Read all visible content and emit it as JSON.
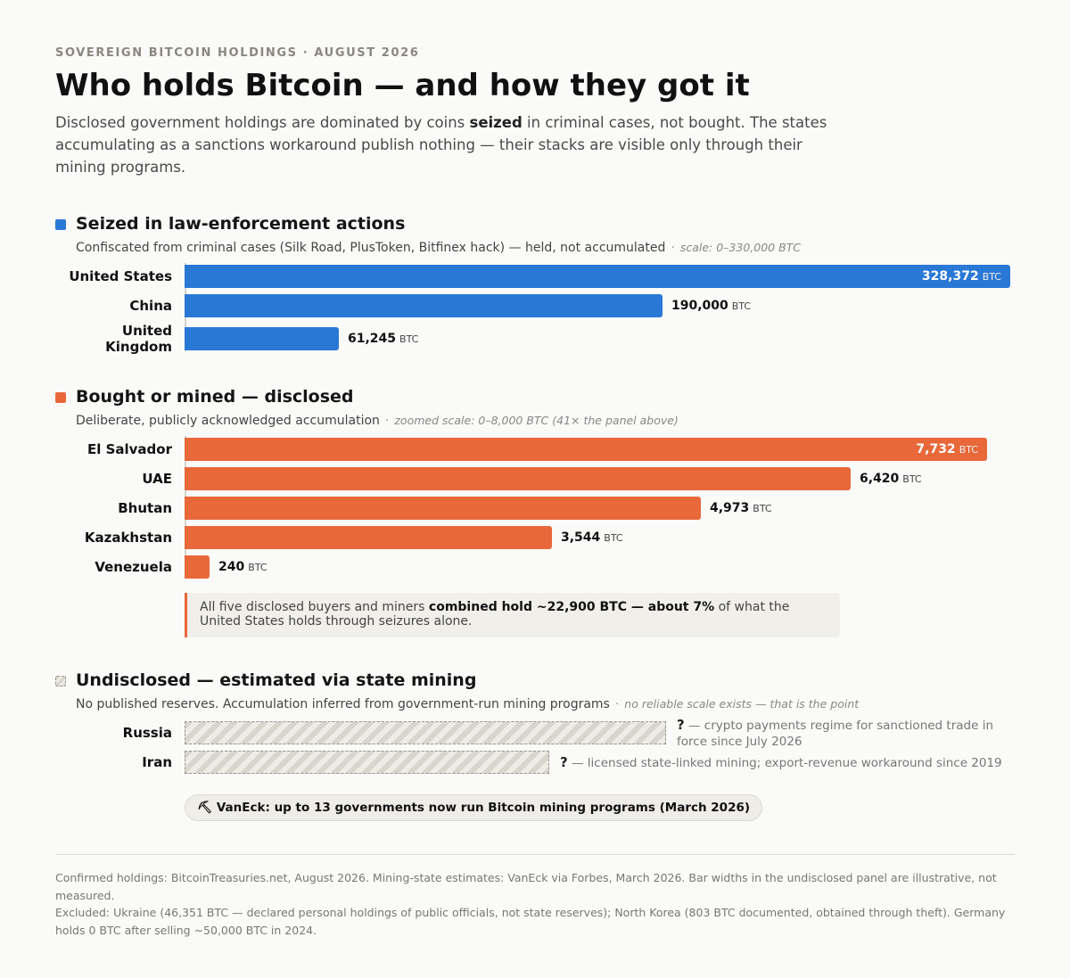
{
  "header": {
    "eyebrow": "SOVEREIGN BITCOIN HOLDINGS · AUGUST 2026",
    "title": "Who holds Bitcoin — and how they got it",
    "subtitle_pre": "Disclosed government holdings are dominated by coins ",
    "subtitle_bold": "seized",
    "subtitle_post": " in criminal cases, not bought. The states accumulating as a sanctions workaround publish nothing — their stacks are visible only through their mining programs."
  },
  "colors": {
    "seized": "#2a78d6",
    "bought": "#e8683a",
    "undisclosed": "#d8d5cd"
  },
  "chart_data": [
    {
      "type": "bar",
      "orientation": "horizontal",
      "title": "Seized in law-enforcement actions",
      "subtitle": "Confiscated from criminal cases (Silk Road, PlusToken, Bitfinex hack) — held, not accumulated",
      "scale_note": "scale: 0–330,000 BTC",
      "xlim": [
        0,
        330000
      ],
      "unit": "BTC",
      "categories": [
        "United States",
        "China",
        "United Kingdom"
      ],
      "values": [
        328372,
        190000,
        61245
      ],
      "labels": [
        "328,372",
        "190,000",
        "61,245"
      ]
    },
    {
      "type": "bar",
      "orientation": "horizontal",
      "title": "Bought or mined — disclosed",
      "subtitle": "Deliberate, publicly acknowledged accumulation",
      "scale_note": "zoomed scale: 0–8,000 BTC (41× the panel above)",
      "xlim": [
        0,
        8000
      ],
      "unit": "BTC",
      "categories": [
        "El Salvador",
        "UAE",
        "Bhutan",
        "Kazakhstan",
        "Venezuela"
      ],
      "values": [
        7732,
        6420,
        4973,
        3544,
        240
      ],
      "labels": [
        "7,732",
        "6,420",
        "4,973",
        "3,544",
        "240"
      ],
      "callout_pre": "All five disclosed buyers and miners ",
      "callout_bold": "combined hold ~22,900 BTC — about 7%",
      "callout_post": " of what the United States holds through seizures alone."
    },
    {
      "type": "bar",
      "orientation": "horizontal",
      "title": "Undisclosed — estimated via state mining",
      "subtitle": "No published reserves. Accumulation inferred from government-run mining programs",
      "scale_note": "no reliable scale exists — that is the point",
      "categories": [
        "Russia",
        "Iran"
      ],
      "values": [
        null,
        null
      ],
      "question": "?",
      "notes": [
        " — crypto payments regime for sanctioned trade in force since July 2026",
        " — licensed state-linked mining; export-revenue workaround since 2019"
      ],
      "pill": "⛏ VanEck: up to 13 governments now run Bitcoin mining programs (March 2026)"
    }
  ],
  "footer": {
    "line1": "Confirmed holdings: BitcoinTreasuries.net, August 2026. Mining-state estimates: VanEck via Forbes, March 2026. Bar widths in the undisclosed panel are illustrative, not measured.",
    "line2": "Excluded: Ukraine (46,351 BTC — declared personal holdings of public officials, not state reserves); North Korea (803 BTC documented, obtained through theft). Germany holds 0 BTC after selling ~50,000 BTC in 2024."
  }
}
